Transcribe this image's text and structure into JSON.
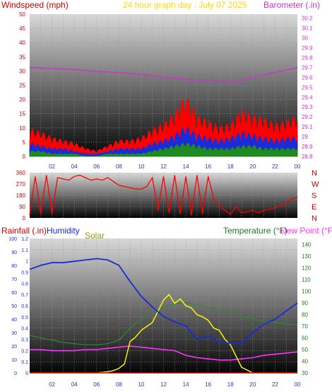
{
  "header": {
    "windspeed_title": "Windspeed (mph)",
    "graph_title": "24 hour graph day : July 07 2025",
    "barometer_title": "Barometer (.in)",
    "rainfall_title": "Rainfall (.in)",
    "humidity_title": "Humidity",
    "solar_title": "Solar",
    "temperature_title": "Temperature (°F)",
    "dewpoint_title": "Dew Point (°F)"
  },
  "colors": {
    "windspeed": "#ff0000",
    "gust": "#ff0000",
    "wind_avg": "#1a2bd8",
    "wind_low": "#1f8a1f",
    "barometer": "#cc33cc",
    "direction": "#ff0000",
    "rainfall": "#cc0000",
    "humidity": "#1a2bd8",
    "solar": "#ffff00",
    "temperature": "#2e8b2e",
    "dewpoint": "#ff33ff",
    "title": "#ffd700"
  },
  "chart_data": [
    {
      "type": "area",
      "title": "24 hour graph day : July 07 2025",
      "x_ticks": [
        "02",
        "04",
        "06",
        "08",
        "10",
        "12",
        "14",
        "16",
        "18",
        "20",
        "22",
        "00"
      ],
      "grid": true,
      "left_axis": {
        "label": "Windspeed (mph)",
        "ticks": [
          0,
          5,
          10,
          15,
          20,
          25,
          30,
          35,
          40,
          45,
          50
        ],
        "range": [
          0,
          50
        ]
      },
      "right_axis": {
        "label": "Barometer (.in)",
        "ticks": [
          28.8,
          28.9,
          29.0,
          29.1,
          29.2,
          29.3,
          29.4,
          29.5,
          29.6,
          29.7,
          29.8,
          29.9,
          30.0,
          30.1,
          30.2
        ],
        "tick_labels": [
          "28.8",
          "28.9",
          "29",
          "29.1",
          "29.2",
          "29.3",
          "29.4",
          "29.5",
          "29.6",
          "29.7",
          "29.8",
          "29.9",
          "30",
          "30.1",
          "30.2"
        ],
        "range": [
          28.8,
          30.24
        ]
      },
      "series": [
        {
          "name": "Windspeed (mph)",
          "hours": [
            0,
            1,
            2,
            3,
            4,
            5,
            6,
            7,
            8,
            9,
            10,
            11,
            12,
            13,
            14,
            15,
            16,
            17,
            18,
            19,
            20,
            21,
            22,
            23,
            24
          ],
          "gust": [
            10,
            9,
            7,
            6,
            5,
            3,
            2,
            4,
            6,
            6,
            7,
            10,
            12,
            16,
            22,
            15,
            13,
            11,
            12,
            17,
            15,
            14,
            12,
            13,
            15
          ],
          "avg": [
            5,
            4,
            3,
            3,
            2,
            1,
            1,
            2,
            3,
            3,
            3,
            5,
            6,
            8,
            11,
            8,
            7,
            6,
            7,
            9,
            8,
            7,
            6,
            7,
            7
          ],
          "low": [
            2,
            2,
            1,
            1,
            1,
            0,
            0,
            1,
            1,
            1,
            1,
            2,
            3,
            4,
            5,
            4,
            3,
            3,
            3,
            4,
            4,
            3,
            3,
            3,
            3
          ]
        },
        {
          "name": "Barometer (.in)",
          "hours": [
            0,
            2,
            4,
            6,
            8,
            10,
            12,
            14,
            16,
            18,
            20,
            22,
            24
          ],
          "values": [
            29.7,
            29.69,
            29.68,
            29.66,
            29.65,
            29.63,
            29.6,
            29.58,
            29.57,
            29.55,
            29.6,
            29.65,
            29.7
          ]
        }
      ]
    },
    {
      "type": "scatter",
      "title": "",
      "x_ticks": [
        "02",
        "04",
        "06",
        "08",
        "10",
        "12",
        "14",
        "16",
        "18",
        "20",
        "22",
        "00"
      ],
      "left_axis": {
        "ticks": [
          0,
          90,
          180,
          270,
          360
        ],
        "tick_labels": [
          "0",
          "90",
          "180",
          "270",
          "360"
        ],
        "range": [
          0,
          360
        ]
      },
      "right_axis": {
        "compass": [
          "N",
          "W",
          "S",
          "E",
          "N"
        ]
      },
      "series": [
        {
          "name": "Wind direction",
          "hours": [
            0,
            0.5,
            1,
            1.5,
            2,
            2.5,
            3,
            3.5,
            4,
            4.5,
            5,
            5.5,
            6,
            6.5,
            7,
            7.5,
            8,
            8.5,
            9,
            9.5,
            10,
            10.5,
            11,
            11.5,
            12,
            12.5,
            13,
            13.5,
            14,
            14.5,
            15,
            15.5,
            16,
            16.5,
            17,
            17.5,
            18,
            18.5,
            19,
            19.5,
            20,
            20.5,
            21,
            21.5,
            22,
            22.5,
            23,
            23.5,
            24
          ],
          "values": [
            20,
            330,
            30,
            340,
            30,
            320,
            310,
            300,
            330,
            340,
            320,
            300,
            310,
            300,
            320,
            290,
            260,
            250,
            240,
            230,
            230,
            250,
            320,
            60,
            330,
            40,
            340,
            30,
            330,
            20,
            340,
            30,
            330,
            150,
            100,
            60,
            30,
            90,
            40,
            50,
            60,
            40,
            60,
            70,
            80,
            100,
            120,
            150,
            170
          ]
        }
      ]
    },
    {
      "type": "line",
      "title": "",
      "x_ticks": [
        "02",
        "04",
        "06",
        "08",
        "10",
        "12",
        "14",
        "16",
        "18",
        "20",
        "22",
        "00"
      ],
      "left_axes": [
        {
          "label": "Rainfall (.in)",
          "ticks": [
            0,
            0.1,
            0.2,
            0.3,
            0.4,
            0.5,
            0.6,
            0.7,
            0.8,
            0.9,
            1,
            1.1,
            1.2
          ],
          "tick_labels": [
            "0",
            "0.1",
            "0.2",
            "0.3",
            "0.4",
            "0.5",
            "0.6",
            "0.7",
            "0.8",
            "0.9",
            "1",
            "1.1",
            "1.2"
          ],
          "range": [
            0,
            1.2
          ]
        },
        {
          "label": "Humidity",
          "ticks": [
            0,
            10,
            20,
            30,
            40,
            50,
            60,
            70,
            80,
            90,
            100
          ],
          "range": [
            0,
            100
          ]
        }
      ],
      "right_axis": {
        "label": "Temperature (°F) / Dew Point (°F)",
        "ticks": [
          30,
          40,
          50,
          60,
          70,
          80,
          90,
          100,
          110,
          120,
          130,
          140
        ],
        "range": [
          30,
          145
        ]
      },
      "series": [
        {
          "name": "Humidity",
          "hours": [
            0,
            1,
            2,
            3,
            4,
            5,
            6,
            7,
            8,
            9,
            10,
            11,
            12,
            13,
            14,
            15,
            16,
            17,
            18,
            19,
            20,
            21,
            22,
            23,
            24
          ],
          "values": [
            77,
            80,
            82,
            82,
            83,
            84,
            85,
            84,
            80,
            68,
            57,
            49,
            42,
            38,
            35,
            25,
            27,
            23,
            22,
            22,
            30,
            36,
            40,
            46,
            52
          ]
        },
        {
          "name": "Temperature (°F)",
          "hours": [
            0,
            1,
            2,
            3,
            4,
            5,
            6,
            7,
            8,
            9,
            10,
            11,
            12,
            13,
            14,
            15,
            16,
            17,
            18,
            19,
            20,
            21,
            22,
            23,
            24
          ],
          "values": [
            62,
            60,
            58,
            56,
            55,
            54,
            54,
            55,
            58,
            68,
            76,
            82,
            86,
            89,
            90,
            88,
            86,
            84,
            82,
            78,
            76,
            74,
            73,
            72,
            71
          ]
        },
        {
          "name": "Dew Point (°F)",
          "hours": [
            0,
            1,
            2,
            3,
            4,
            5,
            6,
            7,
            8,
            9,
            10,
            11,
            12,
            13,
            14,
            15,
            16,
            17,
            18,
            19,
            20,
            21,
            22,
            23,
            24
          ],
          "values": [
            50,
            50,
            49,
            49,
            49,
            50,
            50,
            51,
            52,
            53,
            52,
            51,
            50,
            49,
            45,
            43,
            42,
            41,
            41,
            42,
            43,
            45,
            46,
            47,
            48
          ]
        },
        {
          "name": "Solar",
          "hours": [
            0,
            5,
            6,
            7,
            7.5,
            8,
            8.5,
            9,
            9.5,
            10,
            11,
            11.5,
            12,
            12.5,
            13,
            13.5,
            14,
            14.5,
            15,
            15.5,
            16,
            16.5,
            17,
            17.5,
            18,
            18.5,
            19,
            20,
            24
          ],
          "values": [
            0,
            0,
            0,
            0.01,
            0.02,
            0.04,
            0.08,
            0.28,
            0.32,
            0.38,
            0.45,
            0.55,
            0.65,
            0.7,
            0.62,
            0.66,
            0.6,
            0.58,
            0.52,
            0.5,
            0.47,
            0.4,
            0.38,
            0.3,
            0.25,
            0.15,
            0.05,
            0,
            0
          ]
        },
        {
          "name": "Rainfall (.in)",
          "hours": [
            0,
            24
          ],
          "values": [
            0,
            0
          ]
        }
      ]
    }
  ]
}
